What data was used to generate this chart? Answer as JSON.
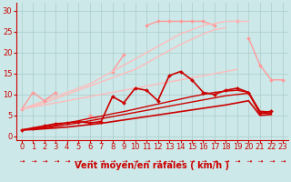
{
  "background_color": "#cce8e8",
  "grid_color": "#aacccc",
  "xlabel": "Vent moyen/en rafales ( km/h )",
  "xlabel_color": "#cc0000",
  "xlabel_fontsize": 7,
  "ylabel_ticks": [
    0,
    5,
    10,
    15,
    20,
    25,
    30
  ],
  "xlim": [
    -0.5,
    23.5
  ],
  "ylim": [
    -1,
    32
  ],
  "x": [
    0,
    1,
    2,
    3,
    4,
    5,
    6,
    7,
    8,
    9,
    10,
    11,
    12,
    13,
    14,
    15,
    16,
    17,
    18,
    19,
    20,
    21,
    22,
    23
  ],
  "lines": [
    {
      "name": "pink_upper_jagged",
      "color": "#ff9999",
      "linewidth": 1.0,
      "marker": "D",
      "markersize": 2.0,
      "y": [
        null,
        null,
        null,
        null,
        null,
        null,
        null,
        null,
        15.5,
        19.5,
        null,
        26.5,
        27.5,
        27.5,
        27.5,
        27.5,
        27.5,
        26.5,
        null,
        27.5,
        null,
        null,
        null,
        null
      ]
    },
    {
      "name": "pink_upper_smooth1",
      "color": "#ffbbbb",
      "linewidth": 1.0,
      "marker": null,
      "markersize": 0,
      "y": [
        6.5,
        7.5,
        8.5,
        9.5,
        10.5,
        11.5,
        12.5,
        14.0,
        15.5,
        17.0,
        18.5,
        20.0,
        21.5,
        23.0,
        24.5,
        25.5,
        26.5,
        27.0,
        27.5,
        27.5,
        27.5,
        null,
        null,
        null
      ]
    },
    {
      "name": "pink_upper_smooth2",
      "color": "#ffbbbb",
      "linewidth": 1.0,
      "marker": null,
      "markersize": 0,
      "y": [
        6.5,
        7.2,
        8.0,
        9.0,
        10.0,
        11.0,
        12.0,
        13.0,
        14.0,
        15.0,
        16.0,
        17.5,
        19.0,
        20.5,
        22.0,
        23.2,
        24.5,
        25.5,
        26.0,
        null,
        null,
        null,
        null,
        null
      ]
    },
    {
      "name": "pink_medium_jagged",
      "color": "#ff9999",
      "linewidth": 1.0,
      "marker": "D",
      "markersize": 2.0,
      "y": [
        6.5,
        10.5,
        8.5,
        10.5,
        null,
        null,
        5.0,
        3.5,
        null,
        null,
        null,
        null,
        null,
        null,
        null,
        null,
        null,
        null,
        null,
        null,
        null,
        null,
        null,
        null
      ]
    },
    {
      "name": "pink_medium_jagged2",
      "color": "#ff9999",
      "linewidth": 1.0,
      "marker": "D",
      "markersize": 2.0,
      "y": [
        null,
        null,
        null,
        null,
        null,
        null,
        null,
        null,
        null,
        null,
        null,
        null,
        null,
        null,
        null,
        null,
        null,
        null,
        null,
        null,
        23.5,
        17.0,
        13.5,
        13.5
      ]
    },
    {
      "name": "pink_lower_smooth",
      "color": "#ffbbbb",
      "linewidth": 1.0,
      "marker": null,
      "markersize": 0,
      "y": [
        6.5,
        7.0,
        7.5,
        8.0,
        8.5,
        9.0,
        9.5,
        10.0,
        10.5,
        11.0,
        11.5,
        12.0,
        12.5,
        13.0,
        13.5,
        14.0,
        14.5,
        15.0,
        15.5,
        16.0,
        null,
        null,
        null,
        null
      ]
    },
    {
      "name": "dark_red_jagged",
      "color": "#cc0000",
      "linewidth": 1.2,
      "marker": "D",
      "markersize": 2.0,
      "y": [
        1.5,
        2.0,
        2.5,
        3.0,
        3.2,
        3.5,
        3.2,
        3.5,
        9.5,
        8.0,
        11.5,
        11.0,
        8.5,
        14.5,
        15.5,
        13.5,
        10.5,
        10.0,
        11.0,
        11.5,
        10.5,
        5.5,
        6.0,
        null
      ]
    },
    {
      "name": "dark_red_smooth1",
      "color": "#cc0000",
      "linewidth": 1.0,
      "marker": null,
      "markersize": 0,
      "y": [
        1.5,
        1.8,
        2.2,
        2.7,
        3.2,
        3.7,
        4.3,
        4.8,
        5.4,
        5.9,
        6.5,
        7.1,
        7.7,
        8.3,
        8.9,
        9.5,
        10.0,
        10.5,
        10.8,
        11.0,
        10.5,
        6.0,
        5.8,
        null
      ]
    },
    {
      "name": "dark_red_smooth2",
      "color": "#cc0000",
      "linewidth": 1.0,
      "marker": null,
      "markersize": 0,
      "y": [
        1.5,
        1.7,
        2.0,
        2.4,
        2.8,
        3.2,
        3.7,
        4.2,
        4.7,
        5.2,
        5.7,
        6.2,
        6.7,
        7.2,
        7.7,
        8.2,
        8.7,
        9.2,
        9.7,
        10.0,
        10.3,
        5.5,
        5.5,
        null
      ]
    },
    {
      "name": "dark_red_flat",
      "color": "#cc0000",
      "linewidth": 1.2,
      "marker": null,
      "markersize": 0,
      "y": [
        1.5,
        1.6,
        1.8,
        2.0,
        2.2,
        2.5,
        2.8,
        3.1,
        3.5,
        3.9,
        4.3,
        4.7,
        5.1,
        5.5,
        5.9,
        6.3,
        6.7,
        7.1,
        7.5,
        8.0,
        8.5,
        5.0,
        5.2,
        null
      ]
    }
  ],
  "tick_color": "#cc0000",
  "tick_fontsize": 6,
  "arrow_color": "#cc0000",
  "arrow_fontsize": 5
}
